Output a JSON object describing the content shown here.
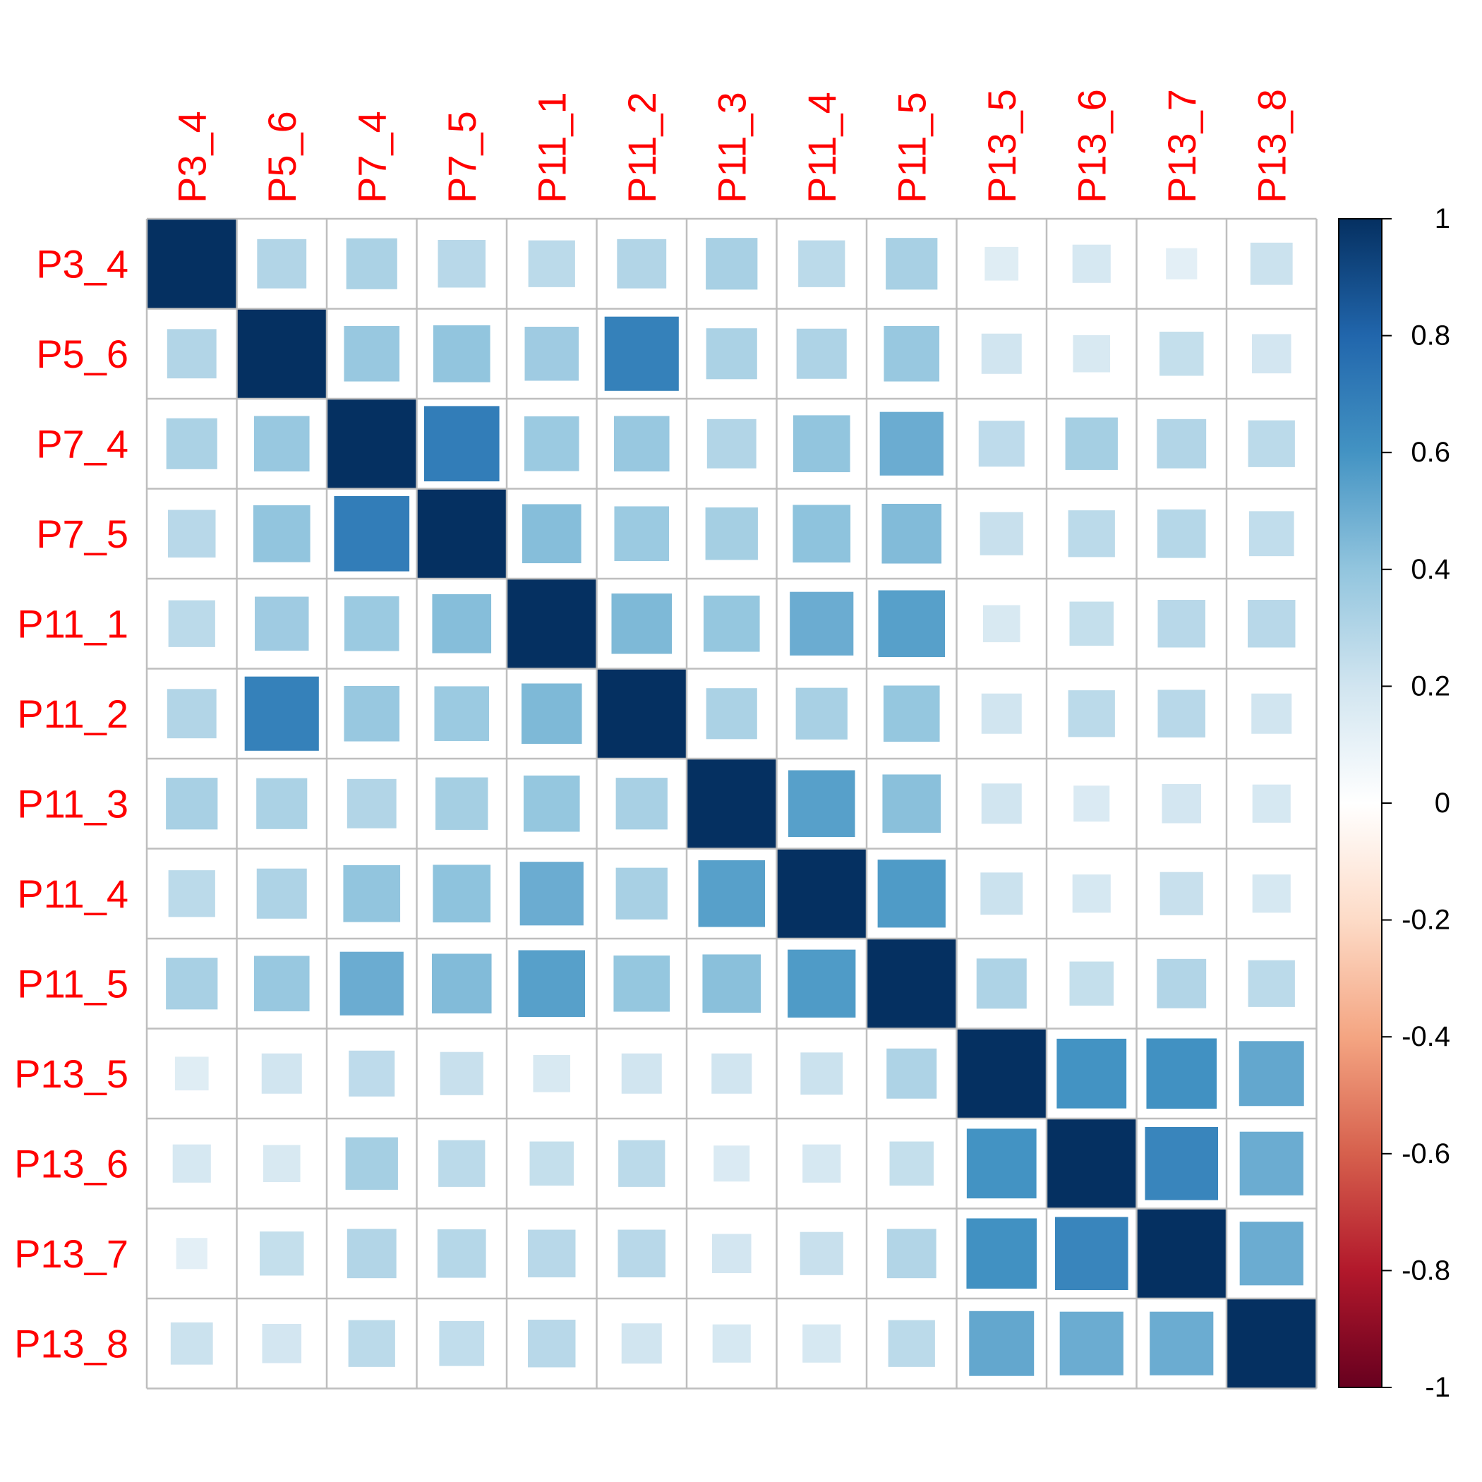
{
  "chart_data": {
    "type": "heatmap",
    "variables": [
      "P3_4",
      "P5_6",
      "P7_4",
      "P7_5",
      "P11_1",
      "P11_2",
      "P11_3",
      "P11_4",
      "P11_5",
      "P13_5",
      "P13_6",
      "P13_7",
      "P13_8"
    ],
    "matrix": [
      [
        1.0,
        0.3,
        0.32,
        0.28,
        0.27,
        0.3,
        0.33,
        0.27,
        0.33,
        0.14,
        0.18,
        0.12,
        0.22
      ],
      [
        0.3,
        1.0,
        0.38,
        0.4,
        0.36,
        0.68,
        0.32,
        0.31,
        0.38,
        0.2,
        0.17,
        0.24,
        0.19
      ],
      [
        0.32,
        0.38,
        1.0,
        0.7,
        0.37,
        0.38,
        0.3,
        0.4,
        0.5,
        0.26,
        0.34,
        0.3,
        0.27
      ],
      [
        0.28,
        0.4,
        0.7,
        1.0,
        0.43,
        0.37,
        0.34,
        0.41,
        0.44,
        0.23,
        0.27,
        0.29,
        0.25
      ],
      [
        0.27,
        0.36,
        0.37,
        0.43,
        1.0,
        0.45,
        0.39,
        0.5,
        0.55,
        0.17,
        0.24,
        0.28,
        0.28
      ],
      [
        0.3,
        0.68,
        0.38,
        0.37,
        0.45,
        1.0,
        0.32,
        0.33,
        0.39,
        0.2,
        0.27,
        0.28,
        0.2
      ],
      [
        0.33,
        0.32,
        0.3,
        0.34,
        0.39,
        0.33,
        1.0,
        0.55,
        0.42,
        0.2,
        0.16,
        0.19,
        0.18
      ],
      [
        0.27,
        0.31,
        0.4,
        0.41,
        0.5,
        0.33,
        0.55,
        1.0,
        0.57,
        0.22,
        0.18,
        0.23,
        0.18
      ],
      [
        0.33,
        0.38,
        0.5,
        0.44,
        0.55,
        0.39,
        0.42,
        0.57,
        1.0,
        0.31,
        0.24,
        0.3,
        0.27
      ],
      [
        0.14,
        0.2,
        0.26,
        0.23,
        0.17,
        0.2,
        0.2,
        0.22,
        0.31,
        1.0,
        0.6,
        0.61,
        0.52
      ],
      [
        0.18,
        0.17,
        0.34,
        0.27,
        0.24,
        0.27,
        0.16,
        0.18,
        0.24,
        0.6,
        1.0,
        0.66,
        0.5
      ],
      [
        0.12,
        0.24,
        0.3,
        0.29,
        0.28,
        0.28,
        0.19,
        0.23,
        0.3,
        0.61,
        0.66,
        1.0,
        0.5
      ],
      [
        0.22,
        0.19,
        0.27,
        0.25,
        0.28,
        0.2,
        0.18,
        0.18,
        0.27,
        0.52,
        0.5,
        0.5,
        1.0
      ]
    ],
    "colorbar": {
      "ticks": [
        "1",
        "0.8",
        "0.6",
        "0.4",
        "0.2",
        "0",
        "-0.2",
        "-0.4",
        "-0.6",
        "-0.8",
        "-1"
      ],
      "range": [
        -1,
        1
      ],
      "colors": [
        "#67001F",
        "#B2182B",
        "#D6604D",
        "#F4A582",
        "#FDDBC7",
        "#FFFFFF",
        "#D1E5F0",
        "#92C5DE",
        "#4393C3",
        "#2166AC",
        "#053061"
      ]
    },
    "label_color": "#FF0000",
    "grid_color": "#BEBEBE",
    "title": "",
    "xlabel": "",
    "ylabel": ""
  }
}
